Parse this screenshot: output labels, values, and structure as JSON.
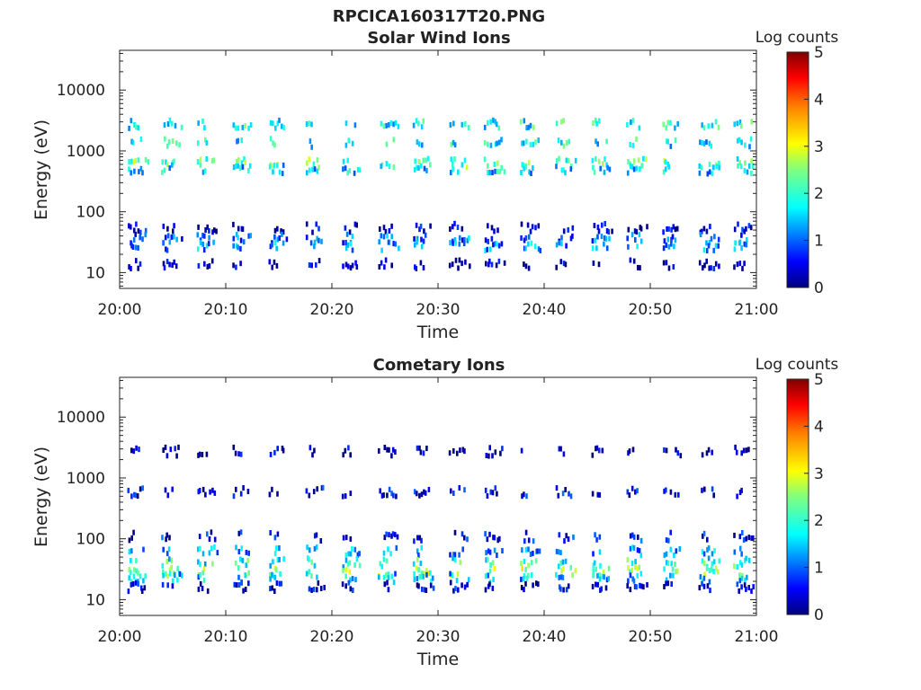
{
  "figure_title": "RPCICA160317T20.PNG",
  "chart_data": [
    {
      "type": "heatmap",
      "title": "Solar Wind Ions",
      "xlabel": "Time",
      "ylabel": "Energy (eV)",
      "x_ticks": [
        "20:00",
        "20:10",
        "20:20",
        "20:30",
        "20:40",
        "20:50",
        "21:00"
      ],
      "xlim": [
        "20:00",
        "21:00"
      ],
      "y_scale": "log",
      "y_ticks": [
        10,
        100,
        1000,
        10000
      ],
      "y_tick_labels": [
        "10",
        "100",
        "1000",
        "10000"
      ],
      "ylim": [
        5.5,
        45000
      ],
      "colorbar": {
        "label": "Log counts",
        "ticks": [
          "0",
          "1",
          "2",
          "3",
          "4",
          "5"
        ],
        "range": [
          0,
          5
        ],
        "colormap": "jet"
      },
      "sweep_starts_min": [
        0.7,
        3.9,
        7.2,
        10.6,
        14.0,
        17.5,
        20.9,
        24.3,
        27.6,
        31.0,
        34.3,
        37.7,
        41.0,
        44.4,
        47.7,
        51.1,
        54.5,
        57.8
      ],
      "bands": [
        {
          "energy_ev": 3000,
          "log_counts": 1.9
        },
        {
          "energy_ev": 1500,
          "log_counts": 1.8
        },
        {
          "energy_ev": 700,
          "log_counts": 2.3
        },
        {
          "energy_ev": 550,
          "log_counts": 1.6
        },
        {
          "energy_ev": 60,
          "log_counts": 0.4
        },
        {
          "energy_ev": 40,
          "log_counts": 1.1
        },
        {
          "energy_ev": 30,
          "log_counts": 1.3
        },
        {
          "energy_ev": 15,
          "log_counts": 0.2
        }
      ]
    },
    {
      "type": "heatmap",
      "title": "Cometary Ions",
      "xlabel": "Time",
      "ylabel": "Energy (eV)",
      "x_ticks": [
        "20:00",
        "20:10",
        "20:20",
        "20:30",
        "20:40",
        "20:50",
        "21:00"
      ],
      "xlim": [
        "20:00",
        "21:00"
      ],
      "y_scale": "log",
      "y_ticks": [
        10,
        100,
        1000,
        10000
      ],
      "y_tick_labels": [
        "10",
        "100",
        "1000",
        "10000"
      ],
      "ylim": [
        5.5,
        45000
      ],
      "colorbar": {
        "label": "Log counts",
        "ticks": [
          "0",
          "1",
          "2",
          "3",
          "4",
          "5"
        ],
        "range": [
          0,
          5
        ],
        "colormap": "jet"
      },
      "sweep_starts_min": [
        0.7,
        3.9,
        7.2,
        10.6,
        14.0,
        17.5,
        20.9,
        24.3,
        27.6,
        31.0,
        34.3,
        37.7,
        41.0,
        44.4,
        47.7,
        51.1,
        54.5,
        57.8
      ],
      "bands": [
        {
          "energy_ev": 3000,
          "log_counts": 0.2
        },
        {
          "energy_ev": 650,
          "log_counts": 0.5
        },
        {
          "energy_ev": 120,
          "log_counts": 0.6
        },
        {
          "energy_ev": 70,
          "log_counts": 1.4
        },
        {
          "energy_ev": 45,
          "log_counts": 2.0
        },
        {
          "energy_ev": 32,
          "log_counts": 2.6
        },
        {
          "energy_ev": 25,
          "log_counts": 1.5
        },
        {
          "energy_ev": 18,
          "log_counts": 0.4
        }
      ]
    }
  ]
}
